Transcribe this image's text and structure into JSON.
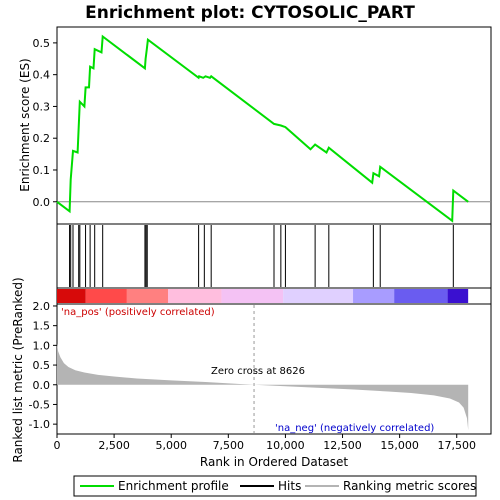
{
  "chart_data": {
    "type": "line",
    "title": "Enrichment plot: CYTOSOLIC_PART",
    "xlabel": "Rank in Ordered Dataset",
    "ylabel_top": "Enrichment score (ES)",
    "ylabel_bottom": "Ranked list metric (PreRanked)",
    "xlim": [
      0,
      19000
    ],
    "xticks": [
      0,
      2500,
      5000,
      7500,
      10000,
      12500,
      15000,
      17500
    ],
    "xtick_labels": [
      "0",
      "2,500",
      "5,000",
      "7,500",
      "10,000",
      "12,500",
      "15,000",
      "17,500"
    ],
    "es_ylim": [
      -0.07,
      0.55
    ],
    "es_yticks": [
      0.0,
      0.1,
      0.2,
      0.3,
      0.4,
      0.5
    ],
    "es_ytick_labels": [
      "0.0",
      "0.1",
      "0.2",
      "0.3",
      "0.4",
      "0.5"
    ],
    "metric_ylim": [
      -1.25,
      2.05
    ],
    "metric_yticks": [
      -1.0,
      -0.5,
      0.0,
      0.5,
      1.0,
      1.5,
      2.0
    ],
    "metric_ytick_labels": [
      "-1.0",
      "-0.5",
      "0.0",
      "0.5",
      "1.0",
      "1.5",
      "2.0"
    ],
    "n_genes": 18000,
    "zero_cross": 8626,
    "zero_cross_label": "Zero cross at 8626",
    "pos_label": "'na_pos' (positively correlated)",
    "neg_label": "'na_neg' (negatively correlated)",
    "legend": [
      "Enrichment profile",
      "Hits",
      "Ranking metric scores"
    ],
    "enrichment_profile": {
      "x": [
        0,
        550,
        600,
        700,
        900,
        950,
        1000,
        1200,
        1250,
        1400,
        1450,
        1600,
        1650,
        1950,
        2000,
        3850,
        3880,
        3930,
        3980,
        6200,
        6220,
        6400,
        6500,
        6700,
        6750,
        9500,
        9800,
        10000,
        11100,
        11300,
        11800,
        11900,
        13800,
        13850,
        14100,
        14150,
        17300,
        17350,
        18000
      ],
      "y": [
        0.0,
        -0.03,
        0.07,
        0.16,
        0.155,
        0.235,
        0.315,
        0.3,
        0.36,
        0.36,
        0.425,
        0.42,
        0.48,
        0.47,
        0.52,
        0.42,
        0.45,
        0.48,
        0.51,
        0.39,
        0.395,
        0.39,
        0.395,
        0.39,
        0.395,
        0.245,
        0.24,
        0.235,
        0.165,
        0.18,
        0.155,
        0.17,
        0.06,
        0.09,
        0.08,
        0.11,
        -0.06,
        0.035,
        0.0
      ]
    },
    "hits": [
      550,
      600,
      700,
      950,
      1000,
      1250,
      1450,
      1650,
      2000,
      3850,
      3900,
      3950,
      6200,
      6450,
      6750,
      9500,
      9800,
      10000,
      11300,
      11900,
      13850,
      14150,
      17350
    ],
    "metric_curve": {
      "x": [
        0,
        50,
        150,
        300,
        500,
        800,
        1200,
        1800,
        2500,
        3500,
        5000,
        6500,
        8000,
        8626,
        10000,
        11500,
        13000,
        14500,
        15500,
        16500,
        17200,
        17600,
        17800,
        17950,
        18000
      ],
      "y": [
        1.05,
        0.85,
        0.7,
        0.55,
        0.45,
        0.37,
        0.31,
        0.25,
        0.21,
        0.16,
        0.11,
        0.07,
        0.02,
        0.0,
        -0.04,
        -0.08,
        -0.12,
        -0.17,
        -0.21,
        -0.27,
        -0.35,
        -0.45,
        -0.58,
        -0.85,
        -1.15
      ]
    },
    "colors": {
      "profile": "#00dd00",
      "hits": "#000000",
      "metric_fill": "#b4b4b4",
      "pos_text": "#cc0000",
      "neg_text": "#0000cc",
      "zero_cross_line": "#999999",
      "heatmap": [
        "#d70a0a",
        "#ff4a4a",
        "#ff8080",
        "#ffbede",
        "#f4c2f4",
        "#e0d0ff",
        "#a89cff",
        "#6a5cf0",
        "#3a10d0"
      ]
    }
  }
}
